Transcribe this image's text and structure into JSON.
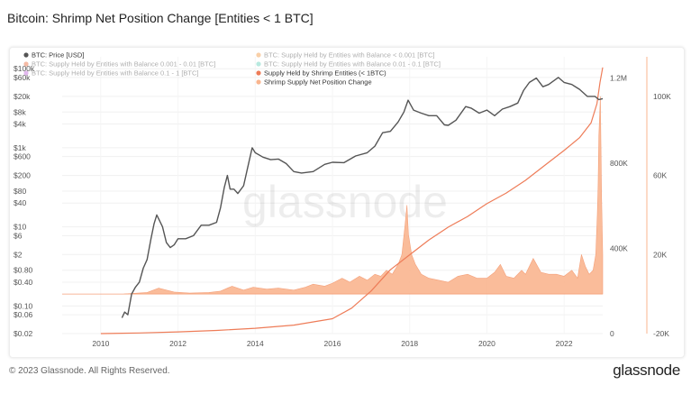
{
  "header": {
    "title": "Bitcoin: Shrimp Net Position Change [Entities < 1 BTC]"
  },
  "footer": {
    "copyright": "© 2023 Glassnode. All Rights Reserved.",
    "brand": "glassnode"
  },
  "watermark": "glassnode",
  "chart_data": {
    "type": "line",
    "title": "Bitcoin: Shrimp Net Position Change [Entities < 1 BTC]",
    "x_range": [
      2009.0,
      2023.0
    ],
    "x_ticks": [
      "2010",
      "2012",
      "2014",
      "2016",
      "2018",
      "2020",
      "2022"
    ],
    "axes": {
      "price": {
        "scale": "log",
        "range": [
          0.02,
          200000
        ],
        "ticks": [
          {
            "v": 0.02,
            "label": "$0.02"
          },
          {
            "v": 0.06,
            "label": "$0.06"
          },
          {
            "v": 0.1,
            "label": "$0.10"
          },
          {
            "v": 0.4,
            "label": "$0.40"
          },
          {
            "v": 0.8,
            "label": "$0.80"
          },
          {
            "v": 2,
            "label": "$2"
          },
          {
            "v": 6,
            "label": "$6"
          },
          {
            "v": 10,
            "label": "$10"
          },
          {
            "v": 40,
            "label": "$40"
          },
          {
            "v": 80,
            "label": "$80"
          },
          {
            "v": 200,
            "label": "$200"
          },
          {
            "v": 600,
            "label": "$600"
          },
          {
            "v": 1000,
            "label": "$1k"
          },
          {
            "v": 4000,
            "label": "$4k"
          },
          {
            "v": 8000,
            "label": "$8k"
          },
          {
            "v": 20000,
            "label": "$20k"
          },
          {
            "v": 60000,
            "label": "$60k"
          },
          {
            "v": 100000,
            "label": "$100k"
          }
        ]
      },
      "supply": {
        "range": [
          0,
          1300000
        ],
        "ticks": [
          {
            "v": 0,
            "label": "0"
          },
          {
            "v": 400000,
            "label": "400K"
          },
          {
            "v": 800000,
            "label": "800K"
          },
          {
            "v": 1200000,
            "label": "1.2M"
          }
        ]
      },
      "change": {
        "range": [
          -20000,
          120000
        ],
        "ticks": [
          {
            "v": -20000,
            "label": "-20K"
          },
          {
            "v": 20000,
            "label": "20K"
          },
          {
            "v": 60000,
            "label": "60K"
          },
          {
            "v": 100000,
            "label": "100K"
          }
        ]
      }
    },
    "legend": [
      {
        "label": "BTC: Price [USD]",
        "color": "#555555",
        "faded": false
      },
      {
        "label": "BTC: Supply Held by Entities with Balance 0.001 - 0.01 [BTC]",
        "color": "#e8541e",
        "faded": true
      },
      {
        "label": "BTC: Supply Held by Entities with Balance 0.1 - 1 [BTC]",
        "color": "#b84fd6",
        "faded": true
      },
      {
        "label": "BTC: Supply Held by Entities with Balance < 0.001 [BTC]",
        "color": "#f28c28",
        "faded": true
      },
      {
        "label": "BTC: Supply Held by Entities with Balance 0.01 - 0.1 [BTC]",
        "color": "#4fc9b0",
        "faded": true
      },
      {
        "label": "Supply Held by Shrimp Entities (< 1BTC)",
        "color": "#ee7c58",
        "faded": false
      },
      {
        "label": "Shrimp Supply Net Position Change",
        "color": "#f9b58f",
        "faded": false
      }
    ],
    "series": [
      {
        "name": "BTC: Price [USD]",
        "axis": "price",
        "color": "#555555",
        "x": [
          2010.55,
          2010.62,
          2010.7,
          2010.8,
          2010.9,
          2011.0,
          2011.1,
          2011.2,
          2011.3,
          2011.38,
          2011.45,
          2011.5,
          2011.6,
          2011.7,
          2011.8,
          2011.9,
          2012.0,
          2012.2,
          2012.4,
          2012.6,
          2012.8,
          2013.0,
          2013.1,
          2013.2,
          2013.28,
          2013.35,
          2013.45,
          2013.55,
          2013.7,
          2013.8,
          2013.92,
          2014.0,
          2014.2,
          2014.4,
          2014.6,
          2014.8,
          2015.0,
          2015.2,
          2015.5,
          2015.8,
          2016.0,
          2016.3,
          2016.6,
          2016.9,
          2017.1,
          2017.3,
          2017.5,
          2017.7,
          2017.85,
          2017.96,
          2018.1,
          2018.3,
          2018.5,
          2018.7,
          2018.9,
          2019.0,
          2019.2,
          2019.45,
          2019.6,
          2019.8,
          2020.0,
          2020.2,
          2020.4,
          2020.6,
          2020.8,
          2020.95,
          2021.1,
          2021.28,
          2021.45,
          2021.6,
          2021.85,
          2022.0,
          2022.2,
          2022.4,
          2022.6,
          2022.8,
          2022.9,
          2023.0
        ],
        "y": [
          0.05,
          0.07,
          0.06,
          0.2,
          0.3,
          0.4,
          0.9,
          1.5,
          5,
          12,
          20,
          16,
          10,
          4,
          3,
          3.5,
          5,
          5,
          6,
          11,
          11,
          13,
          30,
          100,
          200,
          90,
          90,
          70,
          110,
          300,
          1000,
          750,
          580,
          500,
          520,
          400,
          250,
          230,
          250,
          380,
          430,
          420,
          620,
          750,
          1100,
          2400,
          2600,
          4500,
          8000,
          16000,
          9000,
          7500,
          6500,
          6500,
          3800,
          3700,
          5000,
          11000,
          10000,
          7500,
          9000,
          6500,
          9500,
          11000,
          13500,
          28000,
          45000,
          58000,
          35000,
          40000,
          60000,
          45000,
          40000,
          30000,
          20000,
          20000,
          16500,
          17500
        ]
      },
      {
        "name": "Supply Held by Shrimp Entities (< 1BTC)",
        "axis": "supply",
        "color": "#ee7c58",
        "x": [
          2010.0,
          2011.0,
          2012.0,
          2013.0,
          2014.0,
          2015.0,
          2016.0,
          2016.5,
          2017.0,
          2017.5,
          2018.0,
          2018.5,
          2019.0,
          2019.5,
          2020.0,
          2020.5,
          2021.0,
          2021.5,
          2022.0,
          2022.4,
          2022.7,
          2022.85,
          2022.93,
          2023.0
        ],
        "y": [
          0,
          3000,
          8000,
          15000,
          25000,
          40000,
          70000,
          120000,
          200000,
          300000,
          370000,
          440000,
          500000,
          550000,
          610000,
          660000,
          720000,
          790000,
          860000,
          920000,
          990000,
          1080000,
          1180000,
          1250000
        ]
      },
      {
        "name": "Shrimp Supply Net Position Change",
        "axis": "change",
        "color": "#f9b58f",
        "x": [
          2010.6,
          2011.2,
          2011.5,
          2011.9,
          2012.3,
          2012.8,
          2013.1,
          2013.4,
          2013.7,
          2013.95,
          2014.3,
          2014.6,
          2015.0,
          2015.3,
          2015.5,
          2015.8,
          2016.0,
          2016.25,
          2016.45,
          2016.7,
          2016.9,
          2017.1,
          2017.25,
          2017.4,
          2017.55,
          2017.7,
          2017.8,
          2017.88,
          2017.93,
          2017.97,
          2018.05,
          2018.15,
          2018.3,
          2018.5,
          2018.75,
          2019.0,
          2019.25,
          2019.5,
          2019.75,
          2020.0,
          2020.2,
          2020.35,
          2020.5,
          2020.7,
          2020.9,
          2021.0,
          2021.2,
          2021.4,
          2021.6,
          2021.8,
          2022.0,
          2022.2,
          2022.35,
          2022.45,
          2022.55,
          2022.65,
          2022.75,
          2022.82,
          2022.86,
          2022.88,
          2022.9,
          2022.94,
          2022.97,
          2023.0
        ],
        "y": [
          0,
          800,
          3000,
          1000,
          500,
          800,
          1500,
          4000,
          2000,
          3500,
          2500,
          3000,
          2000,
          3500,
          5000,
          4000,
          5500,
          8000,
          6000,
          9000,
          7000,
          10000,
          9000,
          12000,
          10000,
          15000,
          20000,
          35000,
          45000,
          30000,
          20000,
          15000,
          10000,
          8000,
          7000,
          6000,
          9000,
          10000,
          8000,
          8000,
          11000,
          15000,
          9000,
          8000,
          12000,
          10000,
          18000,
          11000,
          10000,
          10000,
          9000,
          12000,
          8000,
          20000,
          14000,
          10000,
          12000,
          20000,
          40000,
          55000,
          80000,
          100000,
          50000,
          20000
        ]
      }
    ]
  }
}
